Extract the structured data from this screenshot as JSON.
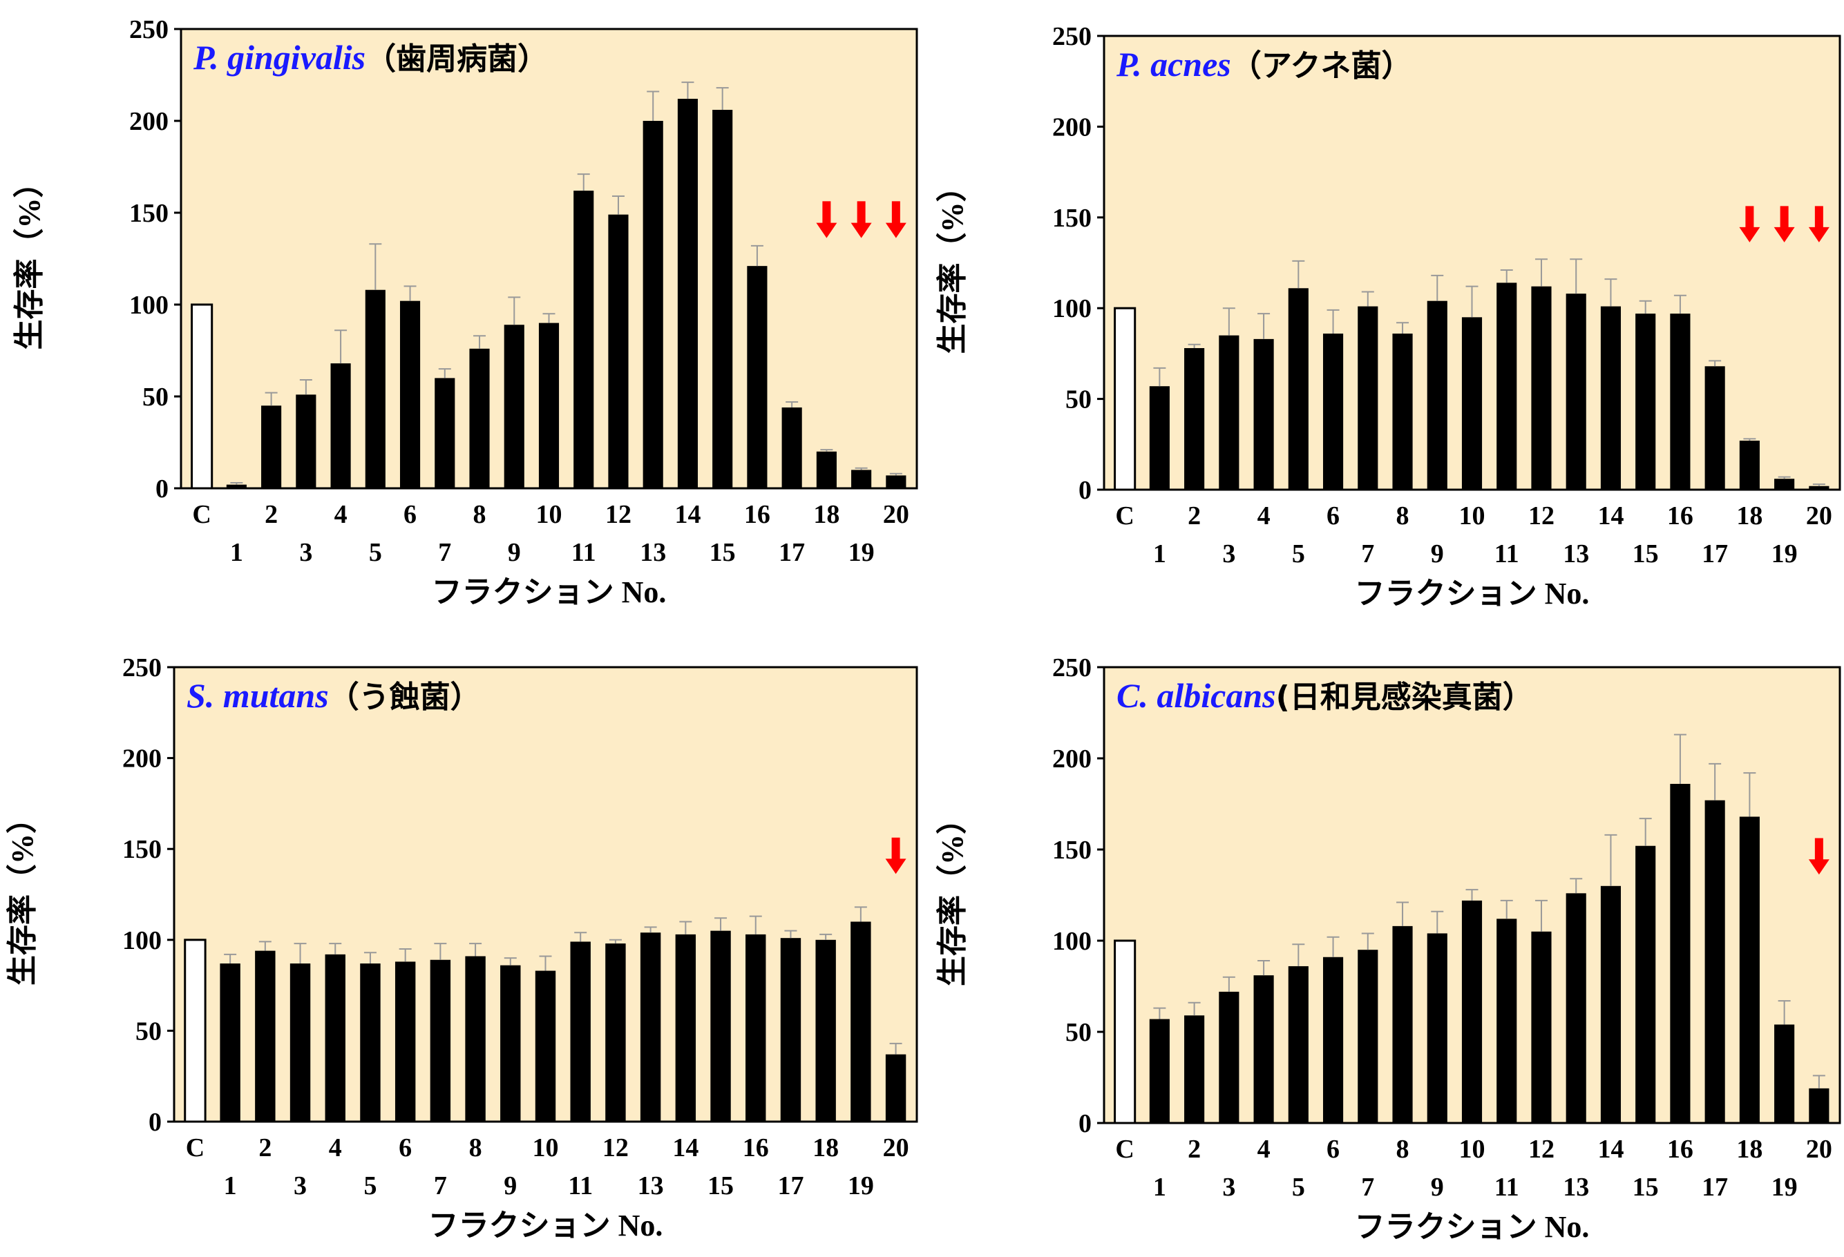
{
  "chart_data": [
    {
      "type": "bar",
      "title_italic": "P. gingivalis",
      "title_suffix": "（歯周病菌）",
      "ylabel": "生存率（%）",
      "xlabel": "フラクション No.",
      "ylim": [
        0,
        250
      ],
      "yticks": [
        0,
        50,
        100,
        150,
        200,
        250
      ],
      "control": {
        "label": "C",
        "value": 100
      },
      "categories": [
        "1",
        "2",
        "3",
        "4",
        "5",
        "6",
        "7",
        "8",
        "9",
        "10",
        "11",
        "12",
        "13",
        "14",
        "15",
        "16",
        "17",
        "18",
        "19",
        "20"
      ],
      "values": [
        2,
        45,
        51,
        68,
        108,
        102,
        60,
        76,
        89,
        90,
        162,
        149,
        200,
        212,
        206,
        121,
        44,
        20,
        10,
        7
      ],
      "errors": [
        1,
        7,
        8,
        18,
        25,
        8,
        5,
        7,
        15,
        5,
        9,
        10,
        16,
        9,
        12,
        11,
        3,
        1,
        1,
        1
      ],
      "arrows": [
        "18",
        "19",
        "20"
      ],
      "colors": {
        "background": "#fdecc7",
        "bar": "#000000",
        "title_italic": "#1a1aff",
        "arrow": "#ff0000"
      }
    },
    {
      "type": "bar",
      "title_italic": "P. acnes",
      "title_suffix": "（アクネ菌）",
      "ylabel": "生存率（%）",
      "xlabel": "フラクション No.",
      "ylim": [
        0,
        250
      ],
      "yticks": [
        0,
        50,
        100,
        150,
        200,
        250
      ],
      "control": {
        "label": "C",
        "value": 100
      },
      "categories": [
        "1",
        "2",
        "3",
        "4",
        "5",
        "6",
        "7",
        "8",
        "9",
        "10",
        "11",
        "12",
        "13",
        "14",
        "15",
        "16",
        "17",
        "18",
        "19",
        "20"
      ],
      "values": [
        57,
        78,
        85,
        83,
        111,
        86,
        101,
        86,
        104,
        95,
        114,
        112,
        108,
        101,
        97,
        97,
        68,
        27,
        6,
        2
      ],
      "errors": [
        10,
        2,
        15,
        14,
        15,
        13,
        8,
        6,
        14,
        17,
        7,
        15,
        19,
        15,
        7,
        10,
        3,
        1,
        1,
        1
      ],
      "arrows": [
        "18",
        "19",
        "20"
      ],
      "colors": {
        "background": "#fdecc7",
        "bar": "#000000",
        "title_italic": "#1a1aff",
        "arrow": "#ff0000"
      }
    },
    {
      "type": "bar",
      "title_italic": "S. mutans",
      "title_suffix": "（う蝕菌）",
      "ylabel": "生存率（%）",
      "xlabel": "フラクション No.",
      "ylim": [
        0,
        250
      ],
      "yticks": [
        0,
        50,
        100,
        150,
        200,
        250
      ],
      "control": {
        "label": "C",
        "value": 100
      },
      "categories": [
        "1",
        "2",
        "3",
        "4",
        "5",
        "6",
        "7",
        "8",
        "9",
        "10",
        "11",
        "12",
        "13",
        "14",
        "15",
        "16",
        "17",
        "18",
        "19",
        "20"
      ],
      "values": [
        87,
        94,
        87,
        92,
        87,
        88,
        89,
        91,
        86,
        83,
        99,
        98,
        104,
        103,
        105,
        103,
        101,
        100,
        110,
        37
      ],
      "errors": [
        5,
        5,
        11,
        6,
        6,
        7,
        9,
        7,
        4,
        8,
        5,
        2,
        3,
        7,
        7,
        10,
        4,
        3,
        8,
        6
      ],
      "arrows": [
        "20"
      ],
      "colors": {
        "background": "#fdecc7",
        "bar": "#000000",
        "title_italic": "#1a1aff",
        "arrow": "#ff0000"
      }
    },
    {
      "type": "bar",
      "title_italic": "C. albicans",
      "title_suffix": "(日和見感染真菌）",
      "ylabel": "生存率（%）",
      "xlabel": "フラクション No.",
      "ylim": [
        0,
        250
      ],
      "yticks": [
        0,
        50,
        100,
        150,
        200,
        250
      ],
      "control": {
        "label": "C",
        "value": 100
      },
      "categories": [
        "1",
        "2",
        "3",
        "4",
        "5",
        "6",
        "7",
        "8",
        "9",
        "10",
        "11",
        "12",
        "13",
        "14",
        "15",
        "16",
        "17",
        "18",
        "19",
        "20"
      ],
      "values": [
        57,
        59,
        72,
        81,
        86,
        91,
        95,
        108,
        104,
        122,
        112,
        105,
        126,
        130,
        152,
        186,
        177,
        168,
        54,
        19
      ],
      "errors": [
        6,
        7,
        8,
        8,
        12,
        11,
        9,
        13,
        12,
        6,
        10,
        17,
        8,
        28,
        15,
        27,
        20,
        24,
        13,
        7
      ],
      "arrows": [
        "20"
      ],
      "colors": {
        "background": "#fdecc7",
        "bar": "#000000",
        "title_italic": "#1a1aff",
        "arrow": "#ff0000"
      }
    }
  ]
}
